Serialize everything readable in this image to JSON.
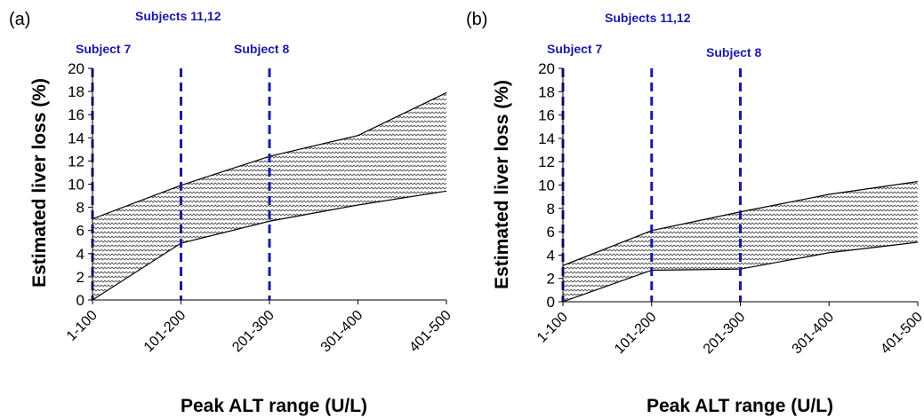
{
  "colors": {
    "marker": "#1a1aa8",
    "band_fill": "#bdbdbd",
    "line": "#000000"
  },
  "chart_data": [
    {
      "panel": "(a)",
      "type": "area",
      "categories": [
        "1-100",
        "101-200",
        "201-300",
        "301-400",
        "401-500"
      ],
      "series": [
        {
          "values": [
            0,
            4.9,
            6.8,
            8.2,
            9.4
          ]
        },
        {
          "values": [
            7.0,
            9.9,
            12.4,
            14.2,
            17.9
          ]
        }
      ],
      "ylabel": "Estimated liver loss (%)",
      "xlabel": "Peak ALT range (U/L)",
      "ylim": [
        0,
        20
      ],
      "yticks": [
        0,
        2,
        4,
        6,
        8,
        10,
        12,
        14,
        16,
        18,
        20
      ],
      "grid": false,
      "annotations": [
        {
          "label": "Subject 7",
          "x": 1
        },
        {
          "label": "Subjects 11,12",
          "x": 2
        },
        {
          "label": "Subject 8",
          "x": 3
        }
      ]
    },
    {
      "panel": "(b)",
      "type": "area",
      "categories": [
        "1-100",
        "101-200",
        "201-300",
        "301-400",
        "401-500"
      ],
      "series": [
        {
          "values": [
            0,
            2.7,
            2.8,
            4.2,
            5.1
          ]
        },
        {
          "values": [
            3.1,
            6.1,
            7.7,
            9.2,
            10.3
          ]
        }
      ],
      "ylabel": "Estimated liver loss (%)",
      "xlabel": "Peak ALT range (U/L)",
      "ylim": [
        0,
        20
      ],
      "yticks": [
        0,
        2,
        4,
        6,
        8,
        10,
        12,
        14,
        16,
        18,
        20
      ],
      "grid": false,
      "annotations": [
        {
          "label": "Subject 7",
          "x": 1
        },
        {
          "label": "Subjects 11,12",
          "x": 2
        },
        {
          "label": "Subject 8",
          "x": 3
        }
      ]
    }
  ]
}
